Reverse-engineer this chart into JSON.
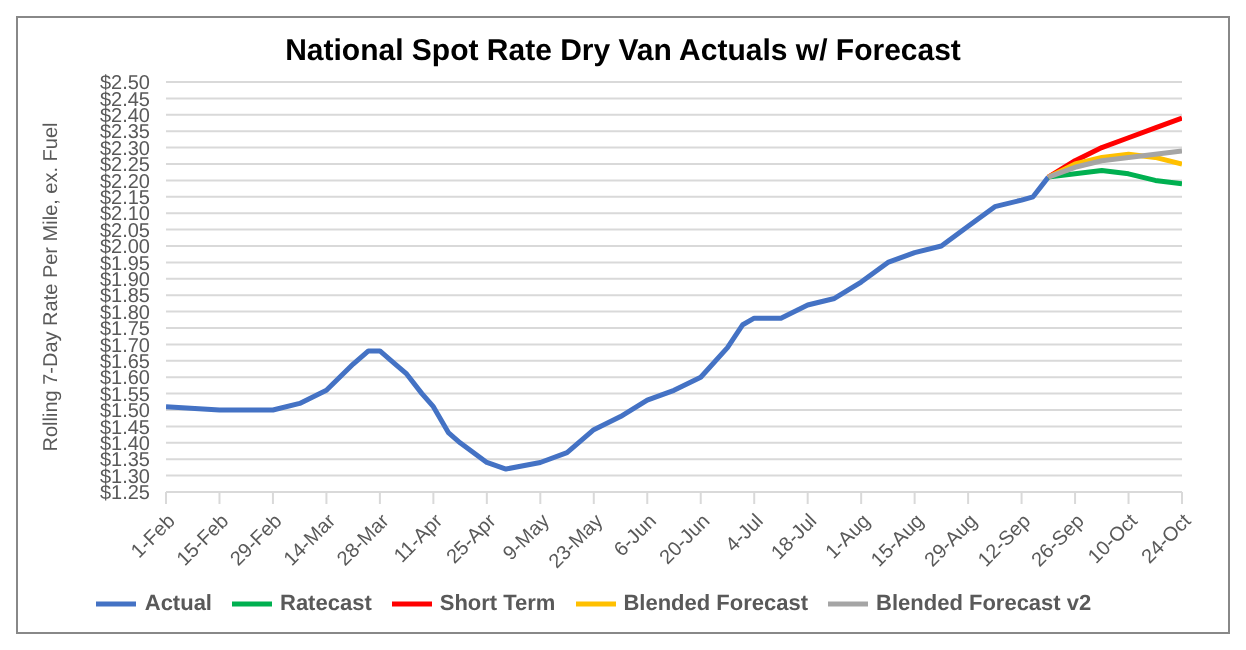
{
  "chart_data": {
    "type": "line",
    "title": "National Spot Rate Dry Van Actuals w/ Forecast",
    "ylabel": "Rolling 7-Day Rate Per Mile, ex. Fuel",
    "series": [
      {
        "name": "Actual",
        "color": "#4472c4",
        "x": [
          "--02-01",
          "--02-15",
          "--02-29",
          "--03-07",
          "--03-14",
          "--03-21",
          "--03-25",
          "--03-28",
          "--04-01",
          "--04-04",
          "--04-08",
          "--04-11",
          "--04-15",
          "--04-18",
          "--04-25",
          "--04-30",
          "--05-09",
          "--05-16",
          "--05-23",
          "--05-30",
          "--06-06",
          "--06-13",
          "--06-20",
          "--06-27",
          "--07-01",
          "--07-04",
          "--07-11",
          "--07-18",
          "--07-25",
          "--08-01",
          "--08-08",
          "--08-15",
          "--08-22",
          "--08-29",
          "--09-05",
          "--09-12",
          "--09-15",
          "--09-19"
        ],
        "values": [
          1.51,
          1.5,
          1.5,
          1.52,
          1.56,
          1.64,
          1.68,
          1.68,
          1.64,
          1.61,
          1.55,
          1.51,
          1.43,
          1.4,
          1.34,
          1.32,
          1.34,
          1.37,
          1.44,
          1.48,
          1.53,
          1.56,
          1.6,
          1.69,
          1.76,
          1.78,
          1.78,
          1.82,
          1.84,
          1.89,
          1.95,
          1.98,
          2.0,
          2.06,
          2.12,
          2.14,
          2.15,
          2.21
        ]
      },
      {
        "name": "Ratecast",
        "color": "#00b050",
        "x": [
          "--09-19",
          "--09-26",
          "--10-03",
          "--10-10",
          "--10-17",
          "--10-24"
        ],
        "values": [
          2.21,
          2.22,
          2.23,
          2.22,
          2.2,
          2.19
        ]
      },
      {
        "name": "Short Term",
        "color": "#ff0000",
        "x": [
          "--09-19",
          "--09-26",
          "--10-03",
          "--10-10",
          "--10-17",
          "--10-24"
        ],
        "values": [
          2.21,
          2.26,
          2.3,
          2.33,
          2.36,
          2.39
        ]
      },
      {
        "name": "Blended Forecast",
        "color": "#ffc000",
        "x": [
          "--09-19",
          "--09-26",
          "--10-03",
          "--10-10",
          "--10-17",
          "--10-24"
        ],
        "values": [
          2.21,
          2.25,
          2.27,
          2.28,
          2.27,
          2.25
        ]
      },
      {
        "name": "Blended Forecast v2",
        "color": "#a5a5a5",
        "x": [
          "--09-19",
          "--09-26",
          "--10-03",
          "--10-10",
          "--10-17",
          "--10-24"
        ],
        "values": [
          2.21,
          2.24,
          2.26,
          2.27,
          2.28,
          2.29
        ]
      }
    ],
    "xlim": [
      "--02-01",
      "--10-24"
    ],
    "xticks": [
      {
        "value": "--02-01",
        "label": "1-Feb"
      },
      {
        "value": "--02-15",
        "label": "15-Feb"
      },
      {
        "value": "--02-29",
        "label": "29-Feb"
      },
      {
        "value": "--03-14",
        "label": "14-Mar"
      },
      {
        "value": "--03-28",
        "label": "28-Mar"
      },
      {
        "value": "--04-11",
        "label": "11-Apr"
      },
      {
        "value": "--04-25",
        "label": "25-Apr"
      },
      {
        "value": "--05-09",
        "label": "9-May"
      },
      {
        "value": "--05-23",
        "label": "23-May"
      },
      {
        "value": "--06-06",
        "label": "6-Jun"
      },
      {
        "value": "--06-20",
        "label": "20-Jun"
      },
      {
        "value": "--07-04",
        "label": "4-Jul"
      },
      {
        "value": "--07-18",
        "label": "18-Jul"
      },
      {
        "value": "--08-01",
        "label": "1-Aug"
      },
      {
        "value": "--08-15",
        "label": "15-Aug"
      },
      {
        "value": "--08-29",
        "label": "29-Aug"
      },
      {
        "value": "--09-12",
        "label": "12-Sep"
      },
      {
        "value": "--09-26",
        "label": "26-Sep"
      },
      {
        "value": "--10-10",
        "label": "10-Oct"
      },
      {
        "value": "--10-24",
        "label": "24-Oct"
      }
    ],
    "ylim": [
      1.25,
      2.5
    ],
    "yticks": [
      {
        "value": 1.25,
        "label": "$1.25"
      },
      {
        "value": 1.3,
        "label": "$1.30"
      },
      {
        "value": 1.35,
        "label": "$1.35"
      },
      {
        "value": 1.4,
        "label": "$1.40"
      },
      {
        "value": 1.45,
        "label": "$1.45"
      },
      {
        "value": 1.5,
        "label": "$1.50"
      },
      {
        "value": 1.55,
        "label": "$1.55"
      },
      {
        "value": 1.6,
        "label": "$1.60"
      },
      {
        "value": 1.65,
        "label": "$1.65"
      },
      {
        "value": 1.7,
        "label": "$1.70"
      },
      {
        "value": 1.75,
        "label": "$1.75"
      },
      {
        "value": 1.8,
        "label": "$1.80"
      },
      {
        "value": 1.85,
        "label": "$1.85"
      },
      {
        "value": 1.9,
        "label": "$1.90"
      },
      {
        "value": 1.95,
        "label": "$1.95"
      },
      {
        "value": 2.0,
        "label": "$2.00"
      },
      {
        "value": 2.05,
        "label": "$2.05"
      },
      {
        "value": 2.1,
        "label": "$2.10"
      },
      {
        "value": 2.15,
        "label": "$2.15"
      },
      {
        "value": 2.2,
        "label": "$2.20"
      },
      {
        "value": 2.25,
        "label": "$2.25"
      },
      {
        "value": 2.3,
        "label": "$2.30"
      },
      {
        "value": 2.35,
        "label": "$2.35"
      },
      {
        "value": 2.4,
        "label": "$2.40"
      },
      {
        "value": 2.45,
        "label": "$2.45"
      },
      {
        "value": 2.5,
        "label": "$2.50"
      }
    ],
    "grid": "y",
    "legend": "bottom",
    "marker": "none",
    "line_style": "solid"
  }
}
